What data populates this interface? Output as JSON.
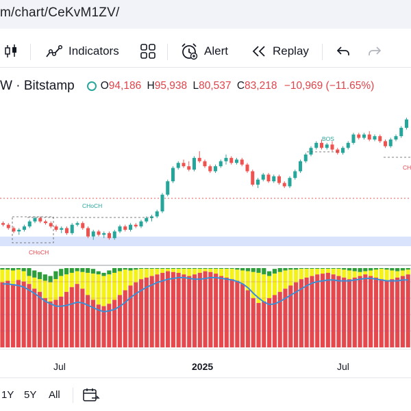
{
  "browser": {
    "url": "m/chart/CeKvM1ZV/"
  },
  "toolbar": {
    "indicators_label": "Indicators",
    "alert_label": "Alert",
    "replay_label": "Replay"
  },
  "legend": {
    "symbol": "W · Bitstamp",
    "o_label": "O",
    "o_value": "94,186",
    "h_label": "H",
    "h_value": "95,938",
    "l_label": "L",
    "l_value": "80,537",
    "c_label": "C",
    "c_value": "83,218",
    "change": "−10,969 (−11.65%)",
    "status_color": "#26a69a"
  },
  "annotations": {
    "choch_lower": "CHoCH",
    "choch_upper": "CHoCH",
    "bos": "BOS",
    "choch_right": "CH"
  },
  "xaxis": {
    "labels": [
      "Jul",
      "2025",
      "Jul"
    ]
  },
  "bottom": {
    "ranges": [
      "1Y",
      "5Y",
      "All"
    ]
  },
  "colors": {
    "up": "#26a69a",
    "down": "#ef5350",
    "osc_red": "#e5484d",
    "osc_yellow": "#f5f21a",
    "osc_green": "#2e9e3a",
    "osc_line": "#3a8fd6",
    "zone": "#d9e3fb"
  },
  "chart_data": {
    "type": "candlestick",
    "candles": [
      [
        62,
        63,
        60,
        61
      ],
      [
        61,
        62,
        58,
        59
      ],
      [
        59,
        60,
        56,
        57
      ],
      [
        57,
        59,
        55,
        58
      ],
      [
        58,
        61,
        57,
        60
      ],
      [
        60,
        64,
        59,
        63
      ],
      [
        63,
        66,
        62,
        65
      ],
      [
        65,
        66,
        62,
        63
      ],
      [
        63,
        64,
        61,
        62
      ],
      [
        62,
        63,
        59,
        60
      ],
      [
        60,
        61,
        57,
        58
      ],
      [
        58,
        60,
        56,
        59
      ],
      [
        59,
        60,
        55,
        56
      ],
      [
        56,
        62,
        55,
        61
      ],
      [
        61,
        63,
        60,
        62
      ],
      [
        62,
        63,
        58,
        59
      ],
      [
        59,
        60,
        53,
        54
      ],
      [
        54,
        58,
        52,
        57
      ],
      [
        57,
        58,
        54,
        55
      ],
      [
        55,
        57,
        53,
        56
      ],
      [
        56,
        57,
        52,
        53
      ],
      [
        53,
        58,
        52,
        57
      ],
      [
        57,
        61,
        56,
        60
      ],
      [
        60,
        61,
        57,
        58
      ],
      [
        58,
        62,
        57,
        61
      ],
      [
        61,
        62,
        59,
        60
      ],
      [
        60,
        64,
        59,
        63
      ],
      [
        63,
        66,
        62,
        65
      ],
      [
        65,
        67,
        63,
        66
      ],
      [
        66,
        70,
        65,
        69
      ],
      [
        69,
        80,
        68,
        79
      ],
      [
        79,
        88,
        78,
        87
      ],
      [
        87,
        96,
        86,
        95
      ],
      [
        95,
        99,
        94,
        98
      ],
      [
        98,
        100,
        95,
        96
      ],
      [
        96,
        99,
        93,
        94
      ],
      [
        94,
        102,
        93,
        101
      ],
      [
        101,
        105,
        98,
        99
      ],
      [
        99,
        100,
        95,
        96
      ],
      [
        96,
        97,
        92,
        93
      ],
      [
        93,
        97,
        92,
        96
      ],
      [
        96,
        100,
        95,
        99
      ],
      [
        99,
        103,
        97,
        101
      ],
      [
        101,
        102,
        97,
        98
      ],
      [
        98,
        101,
        97,
        100
      ],
      [
        100,
        101,
        96,
        97
      ],
      [
        97,
        98,
        92,
        93
      ],
      [
        93,
        94,
        84,
        85
      ],
      [
        85,
        89,
        83,
        88
      ],
      [
        88,
        92,
        87,
        91
      ],
      [
        91,
        92,
        86,
        87
      ],
      [
        87,
        91,
        86,
        90
      ],
      [
        90,
        91,
        85,
        86
      ],
      [
        86,
        87,
        83,
        84
      ],
      [
        84,
        90,
        83,
        89
      ],
      [
        89,
        94,
        88,
        93
      ],
      [
        93,
        100,
        92,
        99
      ],
      [
        99,
        104,
        98,
        103
      ],
      [
        103,
        108,
        102,
        107
      ],
      [
        107,
        111,
        106,
        110
      ],
      [
        110,
        112,
        106,
        107
      ],
      [
        107,
        110,
        106,
        109
      ],
      [
        109,
        111,
        105,
        106
      ],
      [
        106,
        107,
        103,
        104
      ],
      [
        104,
        108,
        103,
        107
      ],
      [
        107,
        111,
        106,
        110
      ],
      [
        110,
        116,
        109,
        115
      ],
      [
        115,
        116,
        112,
        113
      ],
      [
        113,
        116,
        112,
        115
      ],
      [
        115,
        117,
        111,
        112
      ],
      [
        112,
        115,
        111,
        114
      ],
      [
        114,
        115,
        110,
        111
      ],
      [
        111,
        112,
        107,
        108
      ],
      [
        108,
        113,
        107,
        112
      ],
      [
        112,
        115,
        111,
        114
      ],
      [
        114,
        120,
        113,
        119
      ],
      [
        119,
        125,
        118,
        124
      ]
    ],
    "price_range": [
      40,
      130
    ],
    "oscillator": {
      "red_height": [
        82,
        84,
        80,
        85,
        83,
        80,
        74,
        70,
        62,
        58,
        60,
        64,
        70,
        76,
        80,
        74,
        66,
        60,
        54,
        52,
        55,
        60,
        66,
        72,
        78,
        82,
        86,
        88,
        90,
        92,
        94,
        96,
        95,
        94,
        92,
        90,
        92,
        94,
        96,
        95,
        93,
        90,
        88,
        86,
        84,
        80,
        72,
        62,
        56,
        58,
        62,
        66,
        70,
        74,
        78,
        82,
        86,
        88,
        90,
        92,
        93,
        94,
        92,
        90,
        88,
        86,
        88,
        90,
        92,
        90,
        88,
        86,
        84,
        86,
        88,
        90,
        92
      ],
      "yellow_top": [
        98,
        98,
        97,
        98,
        96,
        90,
        88,
        86,
        84,
        82,
        86,
        90,
        92,
        94,
        96,
        95,
        94,
        93,
        92,
        90,
        92,
        94,
        96,
        98,
        97,
        98,
        99,
        99,
        99,
        99,
        99,
        99,
        99,
        99,
        99,
        99,
        99,
        99,
        99,
        99,
        99,
        99,
        99,
        99,
        98,
        97,
        96,
        95,
        94,
        92,
        90,
        93,
        95,
        97,
        98,
        98,
        99,
        99,
        99,
        99,
        99,
        99,
        99,
        99,
        98,
        97,
        96,
        95,
        96,
        97,
        98,
        99,
        98,
        97,
        96,
        97,
        98
      ],
      "green_top": [
        100,
        100,
        100,
        100,
        100,
        100,
        97,
        95,
        92,
        90,
        96,
        99,
        100,
        100,
        100,
        100,
        100,
        99,
        96,
        94,
        97,
        100,
        100,
        100,
        100,
        100,
        100,
        100,
        100,
        100,
        100,
        100,
        100,
        100,
        100,
        100,
        100,
        100,
        100,
        100,
        100,
        100,
        100,
        100,
        100,
        100,
        100,
        100,
        100,
        100,
        96,
        99,
        100,
        100,
        100,
        100,
        100,
        100,
        100,
        100,
        100,
        100,
        100,
        100,
        100,
        100,
        100,
        100,
        100,
        100,
        100,
        100,
        100,
        100,
        100,
        100,
        100
      ],
      "line": [
        80,
        80,
        79,
        78,
        76,
        72,
        68,
        63,
        58,
        55,
        52,
        52,
        53,
        55,
        57,
        56,
        53,
        50,
        47,
        45,
        46,
        48,
        52,
        57,
        63,
        68,
        72,
        76,
        79,
        82,
        84,
        86,
        87,
        88,
        88,
        87,
        86,
        86,
        87,
        88,
        88,
        87,
        86,
        85,
        83,
        80,
        75,
        68,
        62,
        57,
        54,
        55,
        58,
        62,
        66,
        70,
        74,
        78,
        81,
        83,
        84,
        85,
        85,
        84,
        84,
        84,
        85,
        86,
        87,
        87,
        86,
        85,
        84,
        84,
        84,
        85,
        85
      ]
    }
  }
}
